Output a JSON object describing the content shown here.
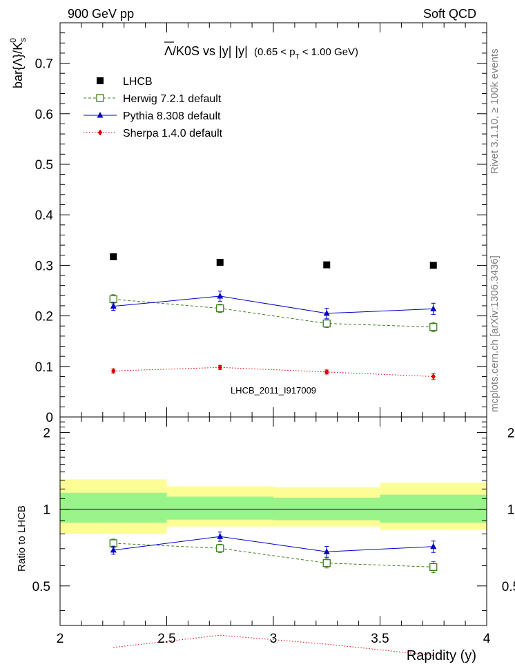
{
  "header": {
    "left": "900 GeV pp",
    "right": "Soft QCD"
  },
  "side_labels": {
    "rivet": "Rivet 3.1.10, ≥ 100k events",
    "mcplots": "mcplots.cern.ch [arXiv:1306.3436]"
  },
  "colors": {
    "data": "#000000",
    "herwig": "#3a7d17",
    "pythia": "#0000cc",
    "sherpa": "#dd0000",
    "band_inner": "#99f58a",
    "band_outer": "#fdfd96"
  },
  "chart_data": {
    "type": "scatter",
    "title_main": "/K0S vs |y|",
    "title_overline": "Λ",
    "title_sub": "(0.65 < p",
    "title_sub_index": "T",
    "title_sub_end": "< 1.00 GeV)",
    "ylabel": "bar{Λ}/K",
    "ylabel_sub": "s",
    "ylabel_sup": "0",
    "ratio_ylabel": "Ratio to LHCB",
    "xlabel": "Rapidity (y)",
    "watermark": "LHCB_2011_I917009",
    "xlim": [
      2,
      4
    ],
    "ylim": [
      0,
      0.78
    ],
    "ratio_ylim": [
      0.35,
      2.3
    ],
    "x_ticks": [
      "2",
      "2.5",
      "3",
      "3.5",
      "4"
    ],
    "y_ticks": [
      "0",
      "0.1",
      "0.2",
      "0.3",
      "0.4",
      "0.5",
      "0.6",
      "0.7"
    ],
    "ratio_ticks": [
      "0.5",
      "1",
      "2"
    ],
    "bins": [
      [
        2.0,
        2.5
      ],
      [
        2.5,
        3.0
      ],
      [
        3.0,
        3.5
      ],
      [
        3.5,
        4.0
      ]
    ],
    "x": [
      2.25,
      2.75,
      3.25,
      3.75
    ],
    "series": [
      {
        "name": "LHCB",
        "key": "data",
        "marker": "square-filled",
        "values": [
          0.317,
          0.306,
          0.301,
          0.3
        ],
        "errors": [
          0.0,
          0.0,
          0.0,
          0.0
        ]
      },
      {
        "name": "Herwig 7.2.1 default",
        "key": "herwig",
        "marker": "square-open",
        "line": "dashed",
        "values": [
          0.233,
          0.215,
          0.185,
          0.178
        ],
        "errors": [
          0.009,
          0.008,
          0.008,
          0.009
        ]
      },
      {
        "name": "Pythia 8.308 default",
        "key": "pythia",
        "marker": "triangle",
        "line": "solid",
        "values": [
          0.219,
          0.239,
          0.205,
          0.214
        ],
        "errors": [
          0.008,
          0.01,
          0.01,
          0.011
        ]
      },
      {
        "name": "Sherpa 1.4.0 default",
        "key": "sherpa",
        "marker": "diamond",
        "line": "dotted",
        "values": [
          0.091,
          0.098,
          0.089,
          0.08
        ],
        "errors": [
          0.004,
          0.004,
          0.004,
          0.006
        ]
      }
    ],
    "ratio_band": {
      "inner": [
        [
          0.885,
          1.16
        ],
        [
          0.91,
          1.12
        ],
        [
          0.905,
          1.11
        ],
        [
          0.885,
          1.14
        ]
      ],
      "outer": [
        [
          0.8,
          1.31
        ],
        [
          0.855,
          1.23
        ],
        [
          0.855,
          1.22
        ],
        [
          0.83,
          1.27
        ]
      ]
    }
  }
}
